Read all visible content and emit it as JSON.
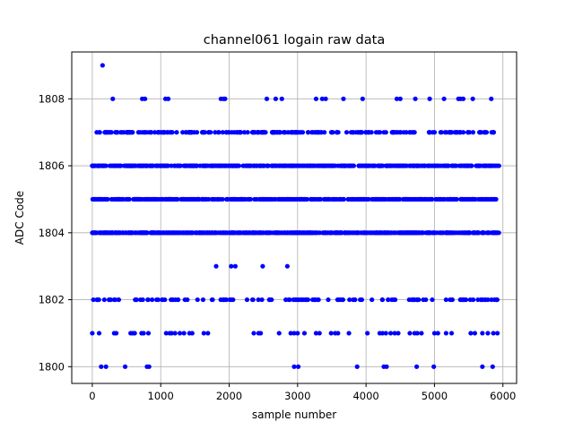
{
  "chart_data": {
    "type": "scatter",
    "title": "channel061 logain raw data",
    "xlabel": "sample number",
    "ylabel": "ADC Code",
    "xlim": [
      -300,
      6200
    ],
    "ylim": [
      1799.5,
      1809.4
    ],
    "xticks": [
      0,
      1000,
      2000,
      3000,
      4000,
      5000,
      6000
    ],
    "yticks": [
      1800,
      1802,
      1804,
      1806,
      1808
    ],
    "grid": true,
    "marker_color": "#0000ff",
    "series": [
      {
        "levels": [
          {
            "y": 1809,
            "x": [
              150
            ]
          },
          {
            "y": 1808,
            "x": [
              300,
              730,
              770,
              1070,
              1110,
              1880,
              1920,
              1940,
              2550,
              2680,
              2770,
              3270,
              3360,
              3410,
              3670,
              3950,
              4450,
              4500,
              4720,
              4930,
              5140,
              5350,
              5380,
              5420,
              5560,
              5830
            ]
          },
          {
            "y": 1807,
            "range": [
              60,
              5920
            ],
            "count": 240
          },
          {
            "y": 1806,
            "range": [
              0,
              5950
            ],
            "count": 520
          },
          {
            "y": 1805,
            "range": [
              0,
              5950
            ],
            "count": 520
          },
          {
            "y": 1804,
            "range": [
              0,
              5950
            ],
            "count": 620
          },
          {
            "y": 1803,
            "x": [
              1810,
              2030,
              2090,
              2490,
              2850
            ]
          },
          {
            "y": 1802,
            "range": [
              0,
              5920
            ],
            "count": 140
          },
          {
            "y": 1801,
            "x": [
              0,
              100,
              320,
              350,
              560,
              590,
              620,
              720,
              750,
              820,
              1080,
              1130,
              1160,
              1210,
              1280,
              1340,
              1420,
              1460,
              1630,
              1690,
              2360,
              2430,
              2460,
              2730,
              2900,
              2950,
              3000,
              3100,
              3270,
              3320,
              3490,
              3550,
              3590,
              3750,
              4020,
              4200,
              4240,
              4290,
              4360,
              4420,
              4470,
              4640,
              4710,
              4750,
              4810,
              5000,
              5050,
              5170,
              5250,
              5530,
              5590,
              5700,
              5780,
              5860,
              5920
            ]
          },
          {
            "y": 1800,
            "x": [
              130,
              200,
              480,
              800,
              830,
              2950,
              3010,
              3870,
              4260,
              4300,
              4740,
              4990,
              5700,
              5850
            ]
          }
        ]
      }
    ]
  }
}
